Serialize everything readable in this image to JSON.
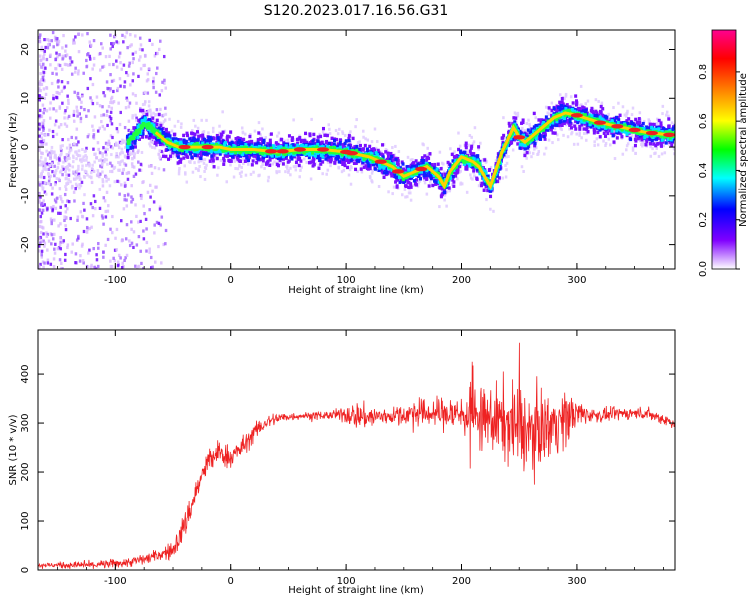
{
  "title": "S120.2023.017.16.56.G31",
  "chart_data": [
    {
      "type": "heatmap",
      "xlabel": "Height of straight line (km)",
      "ylabel": "Frequency (Hz)",
      "xlim": [
        -167,
        385
      ],
      "ylim": [
        -25,
        24
      ],
      "xticks": [
        -100,
        0,
        100,
        200,
        300
      ],
      "yticks": [
        -20,
        -10,
        0,
        10,
        20
      ],
      "ridge_x": [
        -165,
        -140,
        -120,
        -100,
        -85,
        -75,
        -65,
        -55,
        -45,
        -30,
        -10,
        0,
        20,
        40,
        60,
        80,
        100,
        110,
        120,
        130,
        140,
        150,
        160,
        170,
        180,
        185,
        190,
        200,
        210,
        215,
        225,
        235,
        245,
        250,
        255,
        260,
        270,
        280,
        290,
        300,
        320,
        340,
        360,
        380
      ],
      "ridge_y": [
        -3,
        -4,
        -4,
        -2,
        2,
        5,
        3,
        1,
        0,
        0,
        0,
        -0.5,
        -0.5,
        -1,
        -0.5,
        -0.5,
        -1,
        -1.5,
        -2,
        -3,
        -4,
        -6,
        -5,
        -4,
        -6,
        -8,
        -5,
        -2,
        -3,
        -4,
        -8,
        -1,
        4,
        2,
        1,
        2,
        4,
        6,
        7,
        6.5,
        5,
        4,
        3,
        2.5
      ],
      "colorbar": {
        "label": "Normalized spectral amplitude",
        "ticks": [
          "0.0",
          "0.2",
          "0.4",
          "0.6",
          "0.8"
        ],
        "colors": [
          "#ffffff",
          "#8000ff",
          "#0000ff",
          "#00ffff",
          "#00ff00",
          "#ffff00",
          "#ff8000",
          "#ff0000",
          "#ff0090"
        ]
      }
    },
    {
      "type": "line",
      "xlabel": "Height of straight line (km)",
      "ylabel": "SNR (10 * v/v)",
      "xlim": [
        -167,
        385
      ],
      "ylim": [
        0,
        490
      ],
      "xticks": [
        -100,
        0,
        100,
        200,
        300
      ],
      "yticks": [
        0,
        100,
        200,
        300,
        400
      ],
      "color": "#ee2222",
      "series_x": [
        -167,
        -120,
        -90,
        -70,
        -50,
        -40,
        -30,
        -20,
        -10,
        0,
        10,
        20,
        30,
        40,
        60,
        80,
        100,
        120,
        140,
        160,
        180,
        200,
        220,
        240,
        260,
        280,
        300,
        320,
        340,
        360,
        385
      ],
      "series_y": [
        10,
        10,
        15,
        25,
        40,
        90,
        160,
        220,
        240,
        230,
        250,
        280,
        300,
        310,
        315,
        315,
        318,
        312,
        315,
        320,
        320,
        318,
        310,
        300,
        280,
        300,
        320,
        315,
        320,
        320,
        300
      ],
      "noise_x": [
        -167,
        -60,
        -40,
        0,
        60,
        90,
        110,
        140,
        180,
        210,
        230,
        250,
        270,
        290,
        310,
        340,
        385
      ],
      "noise_y": [
        6,
        15,
        35,
        30,
        8,
        12,
        35,
        20,
        40,
        60,
        90,
        110,
        90,
        70,
        18,
        15,
        15
      ]
    }
  ]
}
